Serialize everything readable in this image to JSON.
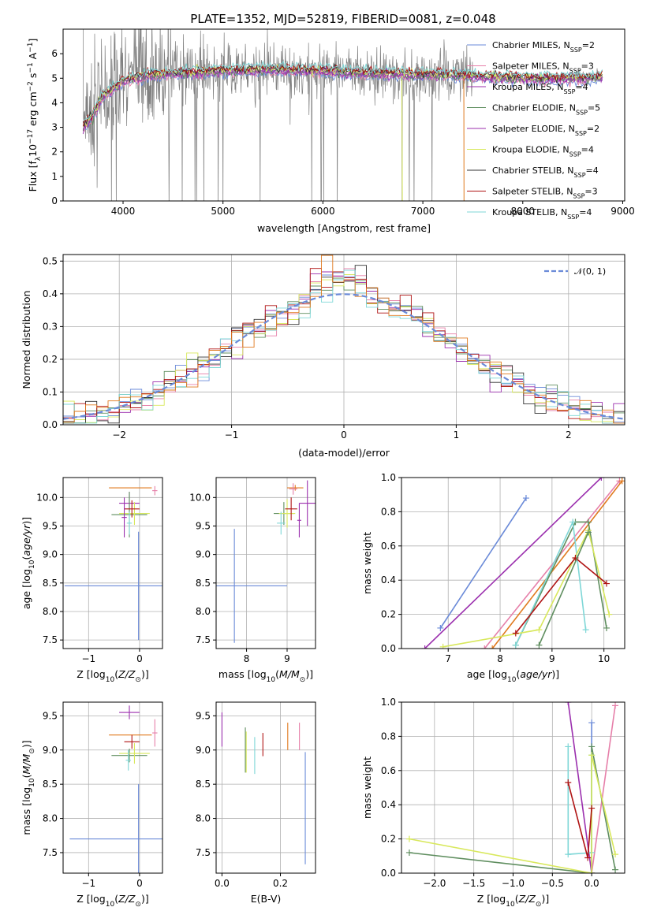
{
  "figure": {
    "title": "PLATE=1352, MJD=52819, FIBERID=0081, z=0.048"
  },
  "colors": {
    "Chabrier MILES": "#6a8ad8",
    "Salpeter MILES": "#e67fa9",
    "Kroupa MILES": "#9b2fae",
    "Chabrier ELODIE": "#5f8e5f",
    "Salpeter ELODIE": "#9b2fae",
    "Kroupa ELODIE": "#d8e85c",
    "Chabrier STELIB": "#333333",
    "Salpeter STELIB": "#b01414",
    "Kroupa STELIB": "#7fd7d7",
    "orange": "#e07a1f",
    "data": "#808080"
  },
  "chart_data": [
    {
      "type": "line",
      "id": "spectrum",
      "title": "PLATE=1352, MJD=52819, FIBERID=0081, z=0.048",
      "xlabel": "wavelength [Angstrom, rest frame]",
      "ylabel_main": "Flux [f",
      "ylabel_sub": "λ",
      "ylabel_rest": "10",
      "ylabel_exp": "−17",
      "ylabel_tail": " erg cm",
      "ylabel_exp2": "−2",
      "ylabel_tail2": " s",
      "ylabel_exp3": "−1",
      "ylabel_tail3": " A",
      "ylabel_exp4": "−1",
      "ylabel_end": "]",
      "xlim": [
        3400,
        9020
      ],
      "ylim": [
        0,
        7
      ],
      "xticks": [
        4000,
        5000,
        6000,
        7000,
        8000,
        9000
      ],
      "yticks": [
        0,
        1,
        2,
        3,
        4,
        5,
        6
      ],
      "legend": [
        {
          "name": "Chabrier MILES, N",
          "sub": "SSP",
          "tail": "=2",
          "color": "#6a8ad8"
        },
        {
          "name": "Salpeter MILES, N",
          "sub": "SSP",
          "tail": "=3",
          "color": "#e67fa9"
        },
        {
          "name": "Kroupa MILES, N",
          "sub": "SSP",
          "tail": "=4",
          "color": "#9b2fae"
        },
        {
          "name": "Chabrier ELODIE, N",
          "sub": "SSP",
          "tail": "=5",
          "color": "#5f8e5f"
        },
        {
          "name": "Salpeter ELODIE, N",
          "sub": "SSP",
          "tail": "=2",
          "color": "#9b2fae"
        },
        {
          "name": "Kroupa ELODIE, N",
          "sub": "SSP",
          "tail": "=4",
          "color": "#d8e85c"
        },
        {
          "name": "Chabrier STELIB, N",
          "sub": "SSP",
          "tail": "=4",
          "color": "#333333"
        },
        {
          "name": "Salpeter STELIB, N",
          "sub": "SSP",
          "tail": "=3",
          "color": "#b01414"
        },
        {
          "name": "Kroupa STELIB, N",
          "sub": "SSP",
          "tail": "=4",
          "color": "#7fd7d7"
        }
      ],
      "continuum": [
        [
          3600,
          3.6
        ],
        [
          3700,
          3.8
        ],
        [
          3800,
          4.3
        ],
        [
          3900,
          4.6
        ],
        [
          4000,
          4.9
        ],
        [
          4200,
          5.1
        ],
        [
          4500,
          5.2
        ],
        [
          5000,
          5.3
        ],
        [
          5500,
          5.35
        ],
        [
          6000,
          5.3
        ],
        [
          6500,
          5.2
        ],
        [
          7000,
          5.15
        ],
        [
          7500,
          5.1
        ],
        [
          8000,
          5.0
        ],
        [
          8500,
          5.0
        ],
        [
          8800,
          5.05
        ]
      ]
    },
    {
      "type": "histogram",
      "id": "residuals",
      "xlabel": "(data-model)/error",
      "ylabel": "Normed distribution",
      "xlim": [
        -2.5,
        2.5
      ],
      "ylim": [
        0,
        0.52
      ],
      "xticks": [
        -2,
        -1,
        0,
        1,
        2
      ],
      "yticks": [
        0.0,
        0.1,
        0.2,
        0.3,
        0.4,
        0.5
      ],
      "legend": "𝒩(0, 1)",
      "bin_width": 0.1
    },
    {
      "type": "scatter",
      "id": "age-vs-Z",
      "xlabel": "Z [log",
      "xlabel_sub": "10",
      "xlabel_rest": "(Z/Z",
      "xlabel_end": ")]",
      "ylabel": "age  [log",
      "ylabel_sub": "10",
      "ylabel_rest": "(age/yr)]",
      "xlim": [
        -1.5,
        0.45
      ],
      "ylim": [
        7.35,
        10.35
      ],
      "xticks": [
        -1,
        0
      ],
      "yticks": [
        7.5,
        8.0,
        8.5,
        9.0,
        9.5,
        10.0
      ],
      "points": [
        {
          "x": -0.02,
          "y": 8.45,
          "xerr": 1.45,
          "yerr": 0.95,
          "color": "#6a8ad8"
        },
        {
          "x": -0.18,
          "y": 10.17,
          "xerr": 0.42,
          "yerr": 0.0,
          "color": "#e07a1f"
        },
        {
          "x": 0.3,
          "y": 10.12,
          "xerr": 0.05,
          "yerr": 0.08,
          "color": "#e67fa9"
        },
        {
          "x": -0.2,
          "y": 9.9,
          "xerr": 0.2,
          "yerr": 0.2,
          "color": "#9b2fae"
        },
        {
          "x": -0.2,
          "y": 9.7,
          "xerr": 0.35,
          "yerr": 0.4,
          "color": "#5f8e5f"
        },
        {
          "x": -0.1,
          "y": 9.72,
          "xerr": 0.3,
          "yerr": 0.2,
          "color": "#d8e85c"
        },
        {
          "x": -0.15,
          "y": 9.8,
          "xerr": 0.15,
          "yerr": 0.15,
          "color": "#b01414"
        },
        {
          "x": -0.2,
          "y": 9.55,
          "xerr": 0.05,
          "yerr": 0.2,
          "color": "#7fd7d7"
        },
        {
          "x": -0.3,
          "y": 9.65,
          "xerr": 0.05,
          "yerr": 0.35,
          "color": "#9b2fae"
        }
      ]
    },
    {
      "type": "scatter",
      "id": "age-vs-mass",
      "xlabel": "mass [log",
      "xlabel_sub": "10",
      "xlabel_rest": "(M/M",
      "xlabel_end": ")]",
      "xlim": [
        7.25,
        9.7
      ],
      "ylim": [
        7.35,
        10.35
      ],
      "xticks": [
        8,
        9
      ],
      "yticks": [
        7.5,
        8.0,
        8.5,
        9.0,
        9.5,
        10.0
      ],
      "points": [
        {
          "x": 7.7,
          "y": 8.45,
          "xerr": 1.3,
          "yerr": 1.0,
          "color": "#6a8ad8"
        },
        {
          "x": 9.2,
          "y": 10.17,
          "xerr": 0.2,
          "yerr": 0.05,
          "color": "#e07a1f"
        },
        {
          "x": 9.15,
          "y": 10.15,
          "xerr": 0.1,
          "yerr": 0.1,
          "color": "#e67fa9"
        },
        {
          "x": 9.5,
          "y": 9.9,
          "xerr": 0.2,
          "yerr": 0.4,
          "color": "#9b2fae"
        },
        {
          "x": 8.92,
          "y": 9.72,
          "xerr": 0.25,
          "yerr": 0.2,
          "color": "#5f8e5f"
        },
        {
          "x": 9.0,
          "y": 9.72,
          "xerr": 0.2,
          "yerr": 0.25,
          "color": "#d8e85c"
        },
        {
          "x": 9.1,
          "y": 9.8,
          "xerr": 0.15,
          "yerr": 0.2,
          "color": "#b01414"
        },
        {
          "x": 8.85,
          "y": 9.55,
          "xerr": 0.1,
          "yerr": 0.2,
          "color": "#7fd7d7"
        },
        {
          "x": 9.3,
          "y": 9.6,
          "xerr": 0.05,
          "yerr": 0.3,
          "color": "#9b2fae"
        }
      ]
    },
    {
      "type": "line",
      "id": "mass-weight-vs-age",
      "xlabel": "age  [log",
      "xlabel_sub": "10",
      "xlabel_rest": "(age/yr)]",
      "ylabel": "mass weight",
      "xlim": [
        6.1,
        10.4
      ],
      "ylim": [
        0,
        1
      ],
      "xticks": [
        7,
        8,
        9,
        10
      ],
      "yticks": [
        0.0,
        0.2,
        0.4,
        0.6,
        0.8,
        1.0
      ],
      "series": [
        {
          "color": "#6a8ad8",
          "x": [
            6.85,
            8.5
          ],
          "y": [
            0.12,
            0.88
          ]
        },
        {
          "color": "#9b2fae",
          "x": [
            6.55,
            9.95
          ],
          "y": [
            0.0,
            1.0
          ]
        },
        {
          "color": "#e67fa9",
          "x": [
            7.7,
            10.3
          ],
          "y": [
            0.0,
            0.98
          ]
        },
        {
          "color": "#e07a1f",
          "x": [
            7.85,
            10.35
          ],
          "y": [
            0.0,
            0.98
          ]
        },
        {
          "color": "#5f8e5f",
          "x": [
            8.3,
            9.45,
            9.7,
            10.05
          ],
          "y": [
            0.02,
            0.74,
            0.74,
            0.12
          ]
        },
        {
          "color": "#7fd7d7",
          "x": [
            8.3,
            9.4,
            9.65
          ],
          "y": [
            0.02,
            0.74,
            0.11
          ]
        },
        {
          "color": "#d8e85c",
          "x": [
            6.9,
            8.75,
            9.7,
            10.1
          ],
          "y": [
            0.01,
            0.11,
            0.69,
            0.2
          ]
        },
        {
          "color": "#b01414",
          "x": [
            8.3,
            9.45,
            10.05
          ],
          "y": [
            0.09,
            0.53,
            0.38
          ]
        },
        {
          "color": "#5f8e5f",
          "x": [
            8.75,
            9.7
          ],
          "y": [
            0.02,
            0.68
          ]
        }
      ]
    },
    {
      "type": "scatter",
      "id": "mass-vs-Z",
      "xlabel": "Z [log",
      "xlabel_sub": "10",
      "xlabel_rest": "(Z/Z",
      "xlabel_end": ")]",
      "ylabel": "mass [log",
      "ylabel_sub": "10",
      "ylabel_rest": "(M/M",
      "ylabel_end": ")]",
      "xlim": [
        -1.5,
        0.45
      ],
      "ylim": [
        7.2,
        9.7
      ],
      "xticks": [
        -1,
        0
      ],
      "yticks": [
        7.5,
        8.0,
        8.5,
        9.0,
        9.5
      ],
      "points": [
        {
          "x": -0.02,
          "y": 7.7,
          "xerr": 1.35,
          "yerr": 0.8,
          "color": "#6a8ad8"
        },
        {
          "x": -0.18,
          "y": 9.22,
          "xerr": 0.42,
          "yerr": 0.0,
          "color": "#e07a1f"
        },
        {
          "x": 0.3,
          "y": 9.25,
          "xerr": 0.05,
          "yerr": 0.2,
          "color": "#e67fa9"
        },
        {
          "x": -0.2,
          "y": 9.55,
          "xerr": 0.2,
          "yerr": 0.1,
          "color": "#9b2fae"
        },
        {
          "x": -0.2,
          "y": 8.92,
          "xerr": 0.35,
          "yerr": 0.1,
          "color": "#5f8e5f"
        },
        {
          "x": -0.1,
          "y": 8.95,
          "xerr": 0.3,
          "yerr": 0.15,
          "color": "#d8e85c"
        },
        {
          "x": -0.15,
          "y": 9.12,
          "xerr": 0.15,
          "yerr": 0.1,
          "color": "#b01414"
        },
        {
          "x": -0.22,
          "y": 8.85,
          "xerr": 0.05,
          "yerr": 0.15,
          "color": "#7fd7d7"
        }
      ]
    },
    {
      "type": "scatter",
      "id": "mass-vs-EBV",
      "xlabel": "E(B-V)",
      "xlim": [
        -0.02,
        0.32
      ],
      "ylim": [
        7.2,
        9.7
      ],
      "xticks": [
        0.0,
        0.2
      ],
      "yticks": [
        7.5,
        8.0,
        8.5,
        9.0,
        9.5
      ],
      "points": [
        {
          "x": 0.285,
          "y": 8.15,
          "yerr": 0.82,
          "color": "#6a8ad8"
        },
        {
          "x": 0.225,
          "y": 9.2,
          "yerr": 0.2,
          "color": "#e07a1f"
        },
        {
          "x": 0.265,
          "y": 9.2,
          "yerr": 0.2,
          "color": "#e67fa9"
        },
        {
          "x": 0.0,
          "y": 9.3,
          "yerr": 0.25,
          "color": "#9b2fae"
        },
        {
          "x": 0.08,
          "y": 9.0,
          "yerr": 0.33,
          "color": "#5f8e5f"
        },
        {
          "x": 0.083,
          "y": 8.97,
          "yerr": 0.3,
          "color": "#d8e85c"
        },
        {
          "x": 0.14,
          "y": 9.08,
          "yerr": 0.17,
          "color": "#b01414"
        },
        {
          "x": 0.112,
          "y": 8.92,
          "yerr": 0.27,
          "color": "#7fd7d7"
        }
      ]
    },
    {
      "type": "line",
      "id": "mass-weight-vs-Z",
      "xlabel": "Z [log",
      "xlabel_sub": "10",
      "xlabel_rest": "(Z/Z",
      "xlabel_end": ")]",
      "ylabel": "mass weight",
      "xlim": [
        -2.42,
        0.42
      ],
      "ylim": [
        0,
        1
      ],
      "xticks": [
        -2.0,
        -1.5,
        -1.0,
        -0.5,
        0.0
      ],
      "yticks": [
        0.0,
        0.2,
        0.4,
        0.6,
        0.8,
        1.0
      ],
      "series": [
        {
          "color": "#6a8ad8",
          "x": [
            0.0,
            0.0
          ],
          "y": [
            0.12,
            0.88
          ]
        },
        {
          "color": "#9b2fae",
          "x": [
            -0.3,
            0.0
          ],
          "y": [
            1.0,
            0.0
          ]
        },
        {
          "color": "#e67fa9",
          "x": [
            0.0,
            0.3
          ],
          "y": [
            0.0,
            0.98
          ]
        },
        {
          "color": "#5f8e5f",
          "x": [
            -2.32,
            0.0,
            0.0,
            0.3
          ],
          "y": [
            0.12,
            0.0,
            0.74,
            0.02
          ]
        },
        {
          "color": "#7fd7d7",
          "x": [
            -0.3,
            -0.3,
            0.0,
            0.0
          ],
          "y": [
            0.74,
            0.11,
            0.12,
            0.69
          ]
        },
        {
          "color": "#d8e85c",
          "x": [
            -2.32,
            0.0,
            0.0,
            0.3
          ],
          "y": [
            0.2,
            0.0,
            0.69,
            0.11
          ]
        },
        {
          "color": "#b01414",
          "x": [
            -0.3,
            -0.05,
            0.0
          ],
          "y": [
            0.53,
            0.09,
            0.38
          ]
        }
      ]
    }
  ]
}
